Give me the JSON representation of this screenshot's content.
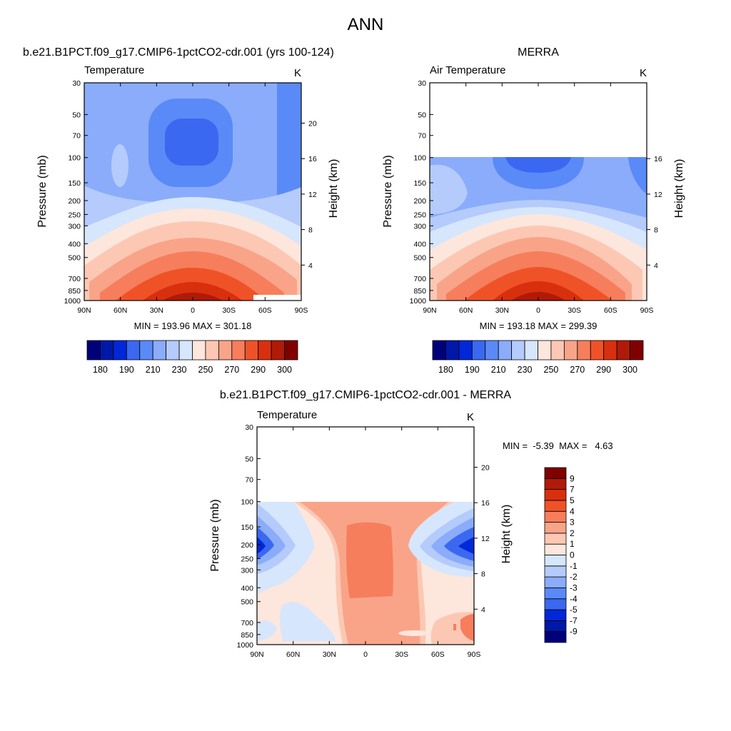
{
  "page_title": "ANN",
  "colors": {
    "scale_temperature": [
      "#00007a",
      "#0018a8",
      "#0028d8",
      "#3a68f0",
      "#5a8af7",
      "#8aacfa",
      "#b4cbfc",
      "#d6e6fd",
      "#fde6dc",
      "#fcc8b4",
      "#f9a488",
      "#f67e5c",
      "#f05228",
      "#d8300e",
      "#b01a08",
      "#800000"
    ],
    "scale_difference": [
      "#00007a",
      "#0018a8",
      "#0028d8",
      "#3a68f0",
      "#5a8af7",
      "#8aacfa",
      "#b4cbfc",
      "#d6e6fd",
      "#fde6dc",
      "#fcc8b4",
      "#f9a488",
      "#f67e5c",
      "#f05228",
      "#d8300e",
      "#b01a08",
      "#800000"
    ]
  },
  "panels": {
    "model": {
      "title": "b.e21.B1PCT.f09_g17.CMIP6-1pctCO2-cdr.001 (yrs 100-124)",
      "variable": "Temperature",
      "units": "K",
      "ylabel": "Pressure (mb)",
      "ylabel_right": "Height (km)",
      "stats": "MIN = 193.96  MAX = 301.18"
    },
    "obs": {
      "title": "MERRA",
      "variable": "Air Temperature",
      "units": "K",
      "ylabel": "Pressure (mb)",
      "ylabel_right": "Height (km)",
      "stats": "MIN = 193.18  MAX = 299.39"
    },
    "diff": {
      "title": "b.e21.B1PCT.f09_g17.CMIP6-1pctCO2-cdr.001 - MERRA",
      "variable": "Temperature",
      "units": "K",
      "ylabel": "Pressure (mb)",
      "ylabel_right": "Height (km)",
      "stats": "MIN =  -5.39  MAX =   4.63"
    }
  },
  "chart_data": [
    {
      "type": "heatmap",
      "name": "model",
      "x_ticks": [
        "90N",
        "60N",
        "30N",
        "0",
        "30S",
        "60S",
        "90S"
      ],
      "x_values": [
        90,
        60,
        30,
        0,
        -30,
        -60,
        -90
      ],
      "y_ticks_pressure": [
        "30",
        "50",
        "70",
        "100",
        "150",
        "200",
        "250",
        "300",
        "400",
        "500",
        "700",
        "850",
        "1000"
      ],
      "y_values_pressure": [
        30,
        50,
        70,
        100,
        150,
        200,
        250,
        300,
        400,
        500,
        700,
        850,
        1000
      ],
      "y_ticks_height": [
        "20",
        "16",
        "12",
        "8",
        "4"
      ],
      "y_values_height": [
        20,
        16,
        12,
        8,
        4
      ],
      "ylim": [
        1000,
        30
      ],
      "xlim": [
        90,
        -90
      ],
      "y_scale": "log",
      "colorbar_labels": [
        "180",
        "190",
        "210",
        "230",
        "250",
        "270",
        "290",
        "300"
      ],
      "data_range": [
        193.96,
        301.18
      ],
      "data_top_pressure": 30
    },
    {
      "type": "heatmap",
      "name": "obs",
      "x_ticks": [
        "90N",
        "60N",
        "30N",
        "0",
        "30S",
        "60S",
        "90S"
      ],
      "x_values": [
        90,
        60,
        30,
        0,
        -30,
        -60,
        -90
      ],
      "y_ticks_pressure": [
        "30",
        "50",
        "70",
        "100",
        "150",
        "200",
        "250",
        "300",
        "400",
        "500",
        "700",
        "850",
        "1000"
      ],
      "y_values_pressure": [
        30,
        50,
        70,
        100,
        150,
        200,
        250,
        300,
        400,
        500,
        700,
        850,
        1000
      ],
      "y_ticks_height": [
        "16",
        "12",
        "8",
        "4"
      ],
      "y_values_height": [
        16,
        12,
        8,
        4
      ],
      "ylim": [
        1000,
        30
      ],
      "xlim": [
        90,
        -90
      ],
      "y_scale": "log",
      "colorbar_labels": [
        "180",
        "190",
        "210",
        "230",
        "250",
        "270",
        "290",
        "300"
      ],
      "data_range": [
        193.18,
        299.39
      ],
      "data_top_pressure": 100
    },
    {
      "type": "heatmap",
      "name": "diff",
      "x_ticks": [
        "90N",
        "60N",
        "30N",
        "0",
        "30S",
        "60S",
        "90S"
      ],
      "x_values": [
        90,
        60,
        30,
        0,
        -30,
        -60,
        -90
      ],
      "y_ticks_pressure": [
        "30",
        "50",
        "70",
        "100",
        "150",
        "200",
        "250",
        "300",
        "400",
        "500",
        "700",
        "850",
        "1000"
      ],
      "y_values_pressure": [
        30,
        50,
        70,
        100,
        150,
        200,
        250,
        300,
        400,
        500,
        700,
        850,
        1000
      ],
      "y_ticks_height": [
        "20",
        "16",
        "12",
        "8",
        "4"
      ],
      "y_values_height": [
        20,
        16,
        12,
        8,
        4
      ],
      "ylim": [
        1000,
        30
      ],
      "xlim": [
        90,
        -90
      ],
      "y_scale": "log",
      "colorbar_labels": [
        "9",
        "7",
        "5",
        "4",
        "3",
        "2",
        "1",
        "0",
        "-1",
        "-2",
        "-3",
        "-4",
        "-5",
        "-7",
        "-9"
      ],
      "data_range": [
        -5.39,
        4.63
      ],
      "data_top_pressure": 100
    }
  ]
}
